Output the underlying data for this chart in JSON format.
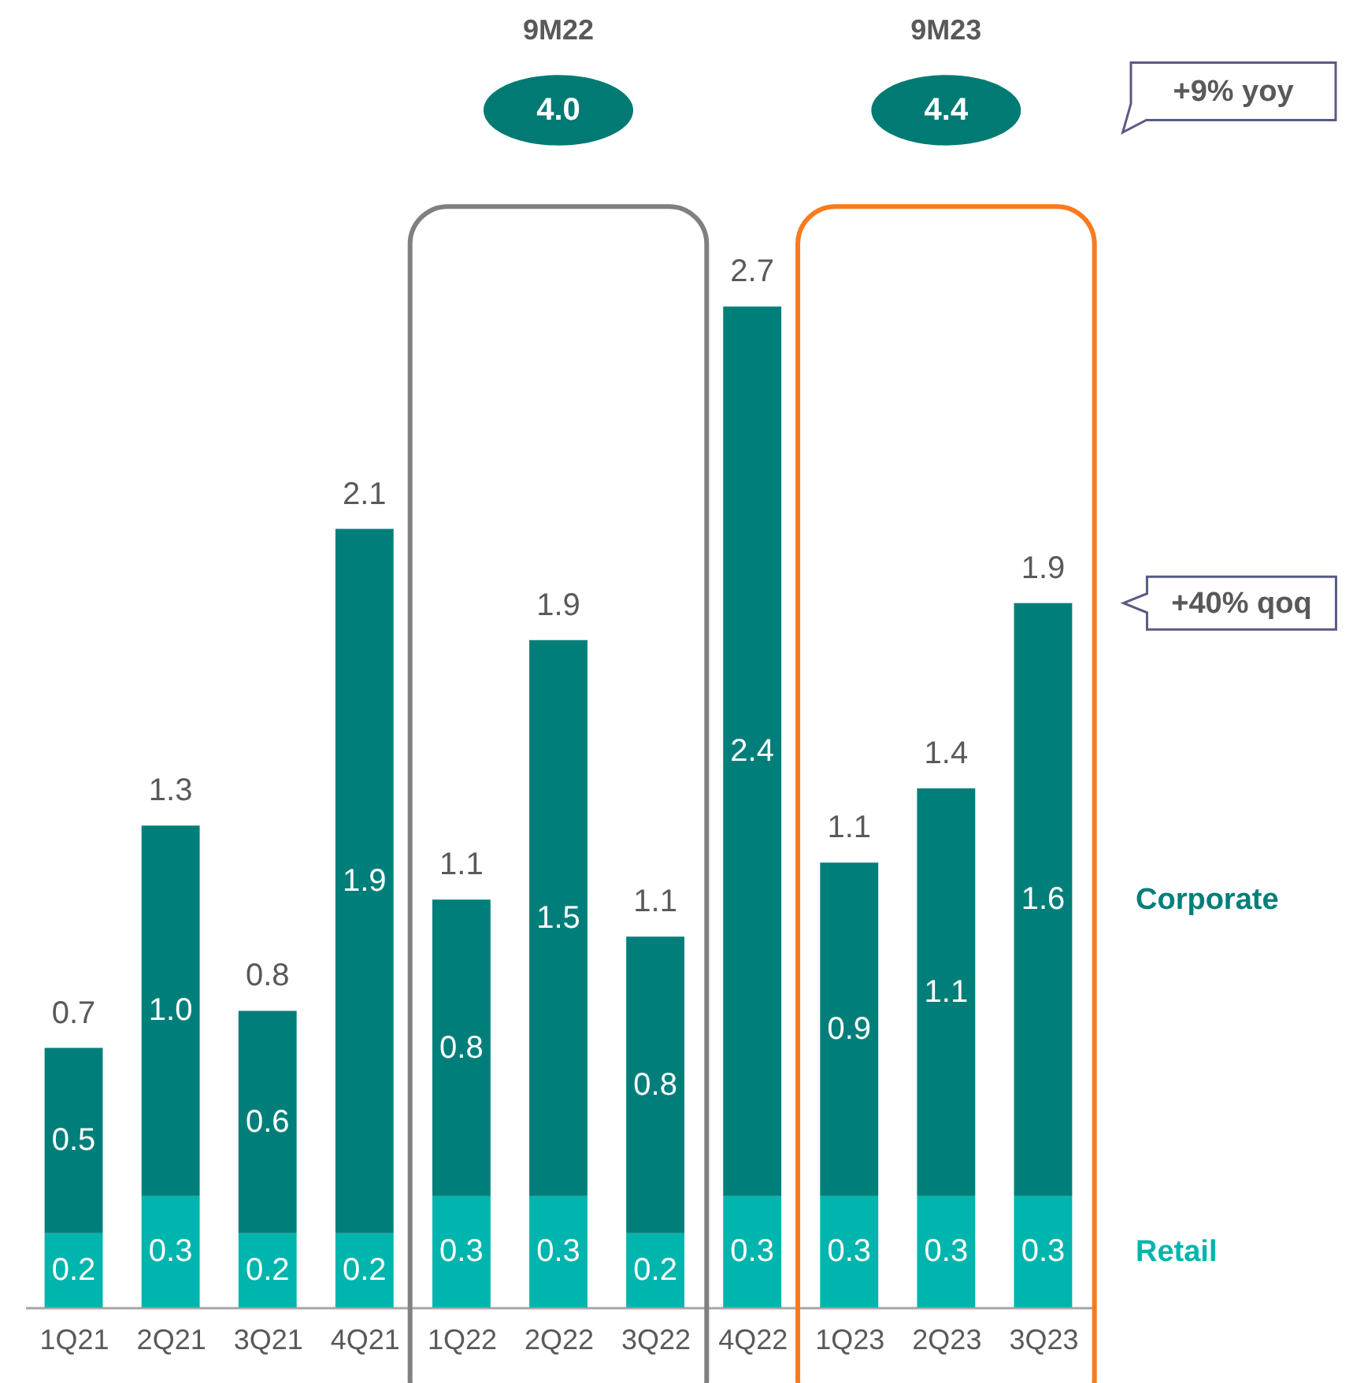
{
  "chart_data": {
    "type": "bar",
    "stacked": true,
    "categories": [
      "1Q21",
      "2Q21",
      "3Q21",
      "4Q21",
      "1Q22",
      "2Q22",
      "3Q22",
      "4Q22",
      "1Q23",
      "2Q23",
      "3Q23"
    ],
    "series": [
      {
        "name": "Retail",
        "color": "#00b5ad",
        "values": [
          0.2,
          0.3,
          0.2,
          0.2,
          0.3,
          0.3,
          0.2,
          0.3,
          0.3,
          0.3,
          0.3
        ],
        "value_labels": [
          "0.2",
          "0.3",
          "0.2",
          "0.2",
          "0.3",
          "0.3",
          "0.2",
          "0.3",
          "0.3",
          "0.3",
          "0.3"
        ]
      },
      {
        "name": "Corporate",
        "color": "#007f7a",
        "values": [
          0.5,
          1.0,
          0.6,
          1.9,
          0.8,
          1.5,
          0.8,
          2.4,
          0.9,
          1.1,
          1.6
        ],
        "value_labels": [
          "0.5",
          "1.0",
          "0.6",
          "1.9",
          "0.8",
          "1.5",
          "0.8",
          "2.4",
          "0.9",
          "1.1",
          "1.6"
        ]
      }
    ],
    "totals": [
      "0.7",
      "1.3",
      "0.8",
      "2.1",
      "1.1",
      "1.9",
      "1.1",
      "2.7",
      "1.1",
      "1.4",
      "1.9"
    ],
    "annotations": [
      "9M22",
      "4.0",
      "9M23",
      "4.4",
      "+9% yoy",
      "+40% qoq"
    ]
  }
}
